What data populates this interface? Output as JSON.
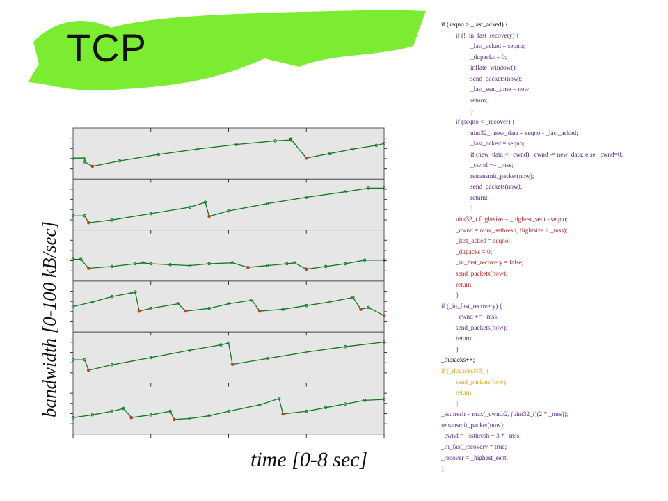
{
  "slide": {
    "title": "TCP",
    "ylabel": "bandwidth [0-100 kB/sec]",
    "xlabel": "time [0-8 sec]",
    "banner_color": "#7cec33",
    "panel_bg": "#e6e6e6",
    "series_color": "#0c7a1e",
    "marker_color": "#d23b1e"
  },
  "code": {
    "colors": {
      "black": "#111111",
      "purple": "#5a2a8a",
      "red": "#b22222",
      "orange": "#d9a514"
    },
    "lines": [
      {
        "text": "if (seqno > _last_acked) {",
        "indent": 0,
        "color": "black"
      },
      {
        "text": "if (!_in_fast_recovery) {",
        "indent": 1,
        "color": "purple"
      },
      {
        "text": "_last_acked = seqno;",
        "indent": 2,
        "color": "purple"
      },
      {
        "text": "_dupacks = 0;",
        "indent": 2,
        "color": "purple"
      },
      {
        "text": "inflate_window();",
        "indent": 2,
        "color": "purple"
      },
      {
        "text": "send_packets(now);",
        "indent": 2,
        "color": "purple"
      },
      {
        "text": "_last_sent_time = now;",
        "indent": 2,
        "color": "purple"
      },
      {
        "text": "return;",
        "indent": 2,
        "color": "purple"
      },
      {
        "text": "}",
        "indent": 2,
        "color": "purple"
      },
      {
        "text": "if (seqno < _recover) {",
        "indent": 1,
        "color": "purple"
      },
      {
        "text": "uint32_t new_data = seqno - _last_acked;",
        "indent": 2,
        "color": "purple"
      },
      {
        "text": "_last_acked = seqno;",
        "indent": 2,
        "color": "purple"
      },
      {
        "text": "if (new_data < _cwnd) _cwnd -= new_data; else _cwnd=0;",
        "indent": 2,
        "color": "purple"
      },
      {
        "text": "_cwnd += _mss;",
        "indent": 2,
        "color": "purple"
      },
      {
        "text": "retransmit_packet(now);",
        "indent": 2,
        "color": "purple"
      },
      {
        "text": "send_packets(now);",
        "indent": 2,
        "color": "purple"
      },
      {
        "text": "return;",
        "indent": 2,
        "color": "purple"
      },
      {
        "text": "}",
        "indent": 2,
        "color": "purple"
      },
      {
        "text": "uint32_t flightsize = _highest_sent - seqno;",
        "indent": 1,
        "color": "red"
      },
      {
        "text": "_cwnd = min(_ssthresh, flightsize + _mss);",
        "indent": 1,
        "color": "red"
      },
      {
        "text": "_last_acked = seqno;",
        "indent": 1,
        "color": "red"
      },
      {
        "text": "_dupacks = 0;",
        "indent": 1,
        "color": "red"
      },
      {
        "text": "_in_fast_recovery = false;",
        "indent": 1,
        "color": "red"
      },
      {
        "text": "send_packets(now);",
        "indent": 1,
        "color": "red"
      },
      {
        "text": "return;",
        "indent": 1,
        "color": "red"
      },
      {
        "text": "}",
        "indent": 1,
        "color": "red"
      },
      {
        "text": "if (_in_fast_recovery) {",
        "indent": 0,
        "color": "purple"
      },
      {
        "text": "_cwnd += _mss;",
        "indent": 1,
        "color": "purple"
      },
      {
        "text": "send_packets(now);",
        "indent": 1,
        "color": "purple"
      },
      {
        "text": "return;",
        "indent": 1,
        "color": "purple"
      },
      {
        "text": "}",
        "indent": 1,
        "color": "purple"
      },
      {
        "text": "_dupacks++;",
        "indent": 0,
        "color": "black"
      },
      {
        "text": "if (_dupacks!=3) {",
        "indent": 0,
        "color": "orange"
      },
      {
        "text": "send_packets(now);",
        "indent": 1,
        "color": "orange"
      },
      {
        "text": "return;",
        "indent": 1,
        "color": "orange"
      },
      {
        "text": "}",
        "indent": 1,
        "color": "orange"
      },
      {
        "text": "_ssthresh = max(_cwnd/2, (uint32_t)(2 * _mss));",
        "indent": 0,
        "color": "purple"
      },
      {
        "text": "retransmit_packet(now);",
        "indent": 0,
        "color": "purple"
      },
      {
        "text": "_cwnd = _ssthresh + 3 * _mss;",
        "indent": 0,
        "color": "purple"
      },
      {
        "text": "_in_fast_recovery = true;",
        "indent": 0,
        "color": "purple"
      },
      {
        "text": "_recover = _highest_sent;",
        "indent": 0,
        "color": "purple"
      },
      {
        "text": "}",
        "indent": 0,
        "color": "black"
      }
    ]
  },
  "chart_data": {
    "type": "line",
    "xlabel": "time [0-8 sec]",
    "ylabel": "bandwidth [0-100 kB/sec]",
    "xlim": [
      0,
      8
    ],
    "ylim": [
      0,
      100
    ],
    "panels": [
      {
        "series": [
          {
            "x": [
              0,
              0.3,
              0.3,
              0.5,
              1.2,
              2.2,
              3.2,
              4.2,
              5.2,
              5.6,
              5.6,
              6.0,
              6.6,
              7.2,
              7.8,
              8.0
            ],
            "y": [
              40,
              40,
              32,
              22,
              34,
              48,
              60,
              70,
              78,
              80,
              82,
              40,
              50,
              60,
              68,
              72
            ]
          }
        ]
      },
      {
        "series": [
          {
            "x": [
              0,
              0.3,
              0.4,
              1.0,
              2.0,
              3.0,
              3.4,
              3.5,
              4.0,
              5.0,
              6.0,
              7.0,
              7.6,
              8.0
            ],
            "y": [
              25,
              25,
              10,
              16,
              30,
              44,
              55,
              24,
              36,
              52,
              66,
              78,
              86,
              86
            ]
          }
        ]
      },
      {
        "series": [
          {
            "x": [
              0,
              0.2,
              0.4,
              1.0,
              1.6,
              1.8,
              2.0,
              2.5,
              3.0,
              3.5,
              4.1,
              4.5,
              5.0,
              5.5,
              5.7,
              6.0,
              6.5,
              7.0,
              7.5,
              8.0
            ],
            "y": [
              42,
              42,
              22,
              26,
              32,
              34,
              32,
              30,
              28,
              32,
              34,
              24,
              28,
              32,
              34,
              20,
              26,
              32,
              40,
              40
            ]
          }
        ]
      },
      {
        "series": [
          {
            "x": [
              0,
              0.5,
              1.0,
              1.5,
              1.6,
              1.7,
              2.0,
              2.7,
              2.9,
              3.5,
              4.0,
              4.6,
              4.8,
              5.4,
              6.0,
              6.6,
              7.2,
              7.4,
              7.6,
              8.0
            ],
            "y": [
              50,
              60,
              72,
              80,
              82,
              40,
              46,
              56,
              40,
              46,
              56,
              64,
              40,
              44,
              52,
              60,
              70,
              44,
              48,
              30
            ]
          }
        ]
      },
      {
        "series": [
          {
            "x": [
              0,
              0.3,
              0.4,
              1.0,
              2.0,
              3.0,
              3.8,
              4.0,
              4.1,
              5.0,
              6.0,
              7.0,
              8.0
            ],
            "y": [
              45,
              45,
              22,
              34,
              50,
              66,
              78,
              82,
              35,
              48,
              62,
              74,
              84
            ]
          }
        ]
      },
      {
        "series": [
          {
            "x": [
              0,
              0.5,
              1.0,
              1.3,
              1.5,
              2.0,
              2.5,
              2.6,
              3.0,
              3.5,
              4.0,
              4.8,
              5.3,
              5.4,
              6.0,
              6.5,
              7.0,
              7.5,
              8.0
            ],
            "y": [
              30,
              36,
              44,
              50,
              30,
              36,
              44,
              26,
              28,
              34,
              44,
              58,
              72,
              38,
              44,
              52,
              60,
              68,
              70
            ]
          }
        ]
      }
    ]
  }
}
